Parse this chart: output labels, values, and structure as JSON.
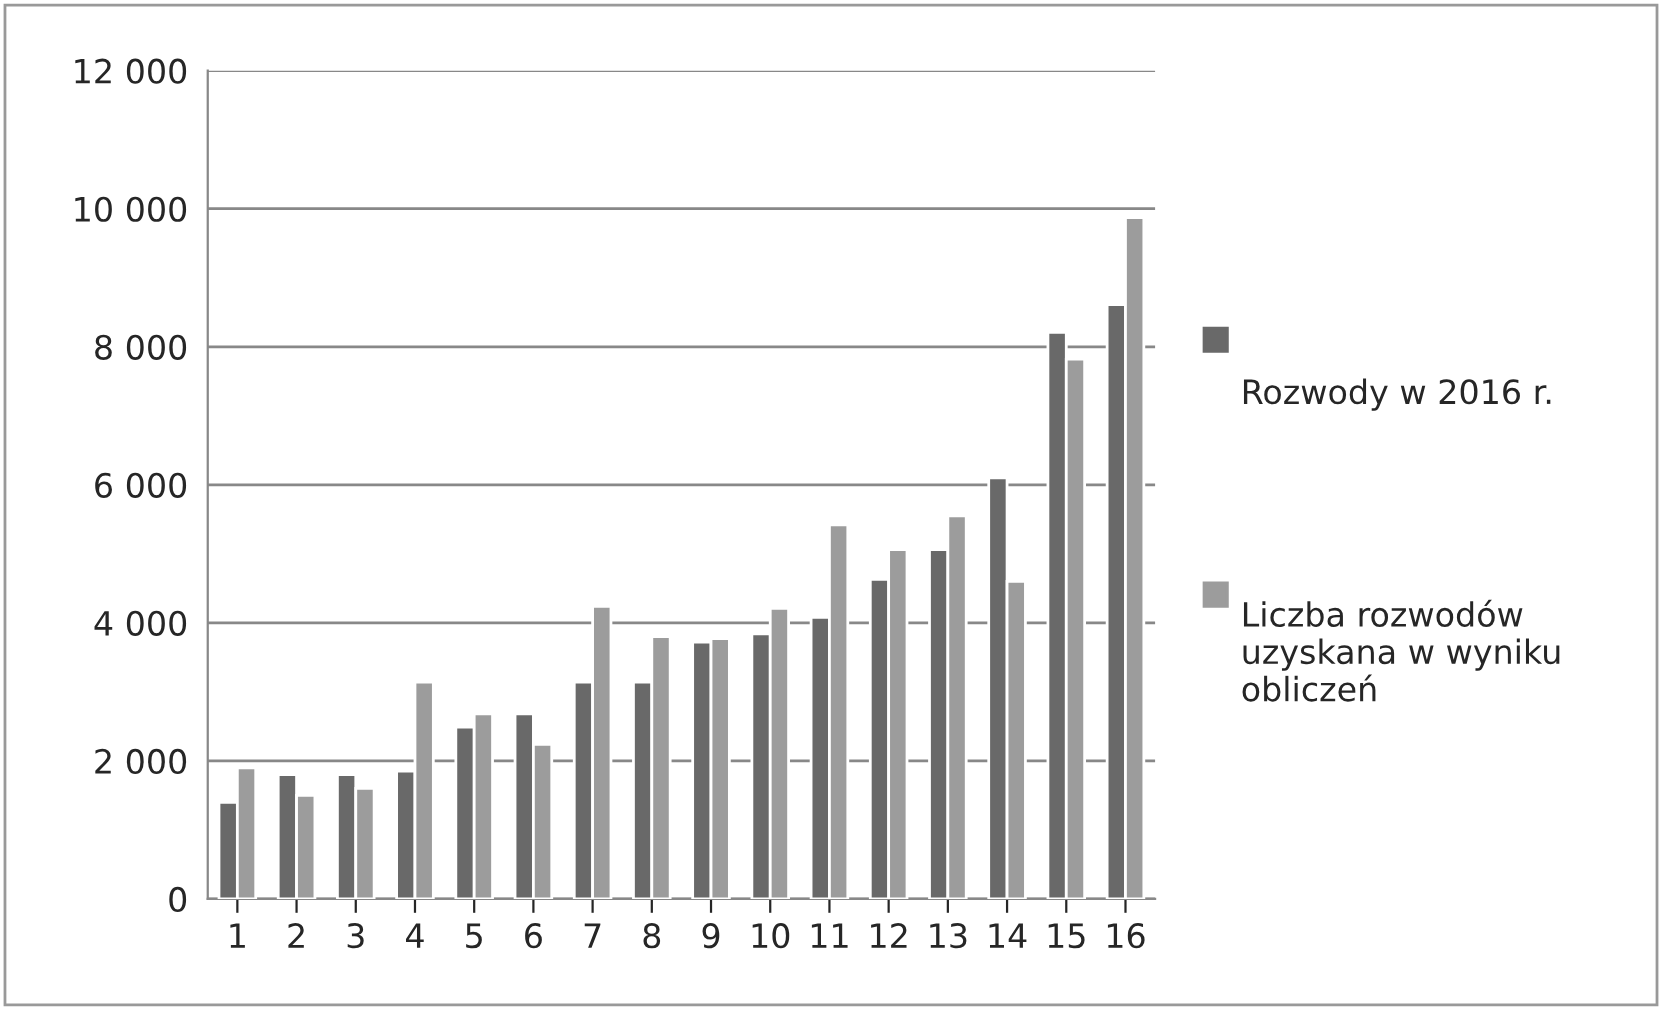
{
  "chart_data": {
    "type": "bar",
    "categories": [
      "1",
      "2",
      "3",
      "4",
      "5",
      "6",
      "7",
      "8",
      "9",
      "10",
      "11",
      "12",
      "13",
      "14",
      "15",
      "16"
    ],
    "series": [
      {
        "name": "Rozwody w 2016 r.",
        "color": "#696969",
        "values": [
          1400,
          1800,
          1800,
          1850,
          2490,
          2680,
          3140,
          3140,
          3720,
          3840,
          4080,
          4630,
          5060,
          6100,
          8210,
          8610
        ]
      },
      {
        "name": "Liczba rozwodów uzyskana w wyniku obliczeń",
        "color": "#9c9c9c",
        "values": [
          1900,
          1500,
          1600,
          3140,
          2680,
          2240,
          4240,
          3800,
          3770,
          4210,
          5420,
          5060,
          5550,
          4600,
          7820,
          9870
        ]
      }
    ],
    "ylim": [
      0,
      12000
    ],
    "yticks": [
      {
        "value": 0,
        "label": "0"
      },
      {
        "value": 2000,
        "label": "2 000"
      },
      {
        "value": 4000,
        "label": "4 000"
      },
      {
        "value": 6000,
        "label": "6 000"
      },
      {
        "value": 8000,
        "label": "8 000"
      },
      {
        "value": 10000,
        "label": "10 000"
      },
      {
        "value": 12000,
        "label": "12 000"
      }
    ],
    "grid": "y",
    "legend": "right"
  }
}
